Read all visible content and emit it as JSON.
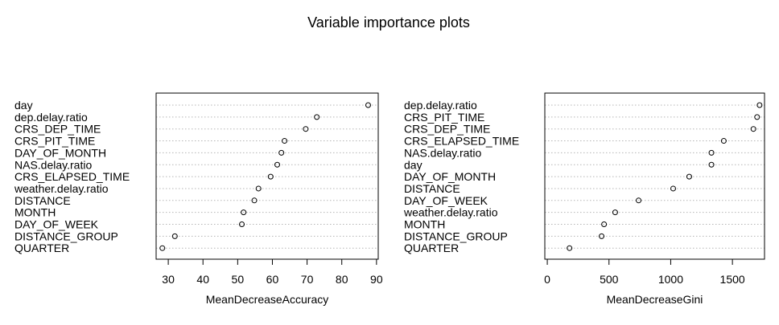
{
  "title": "Variable importance plots",
  "chart_data": [
    {
      "type": "dotchart",
      "xlabel": "MeanDecreaseAccuracy",
      "xlim": [
        26.5,
        90.5
      ],
      "xticks": [
        30,
        40,
        50,
        60,
        70,
        80,
        90
      ],
      "grid": "dotted horizontal lines per row",
      "marker": "open circle",
      "categories": [
        "day",
        "dep.delay.ratio",
        "CRS_DEP_TIME",
        "CRS_PIT_TIME",
        "DAY_OF_MONTH",
        "NAS.delay.ratio",
        "CRS_ELAPSED_TIME",
        "weather.delay.ratio",
        "DISTANCE",
        "MONTH",
        "DAY_OF_WEEK",
        "DISTANCE_GROUP",
        "QUARTER"
      ],
      "values": [
        87.6,
        72.8,
        69.6,
        63.5,
        62.6,
        61.4,
        59.5,
        56.0,
        54.8,
        51.7,
        51.2,
        31.9,
        28.3
      ]
    },
    {
      "type": "dotchart",
      "xlabel": "MeanDecreaseGini",
      "xlim": [
        -20,
        1760
      ],
      "xticks": [
        0,
        500,
        1000,
        1500
      ],
      "grid": "dotted horizontal lines per row",
      "marker": "open circle",
      "categories": [
        "dep.delay.ratio",
        "CRS_PIT_TIME",
        "CRS_DEP_TIME",
        "CRS_ELAPSED_TIME",
        "NAS.delay.ratio",
        "day",
        "DAY_OF_MONTH",
        "DISTANCE",
        "DAY_OF_WEEK",
        "weather.delay.ratio",
        "MONTH",
        "DISTANCE_GROUP",
        "QUARTER"
      ],
      "values": [
        1720,
        1700,
        1670,
        1430,
        1330,
        1330,
        1150,
        1020,
        740,
        550,
        460,
        440,
        180
      ]
    }
  ]
}
